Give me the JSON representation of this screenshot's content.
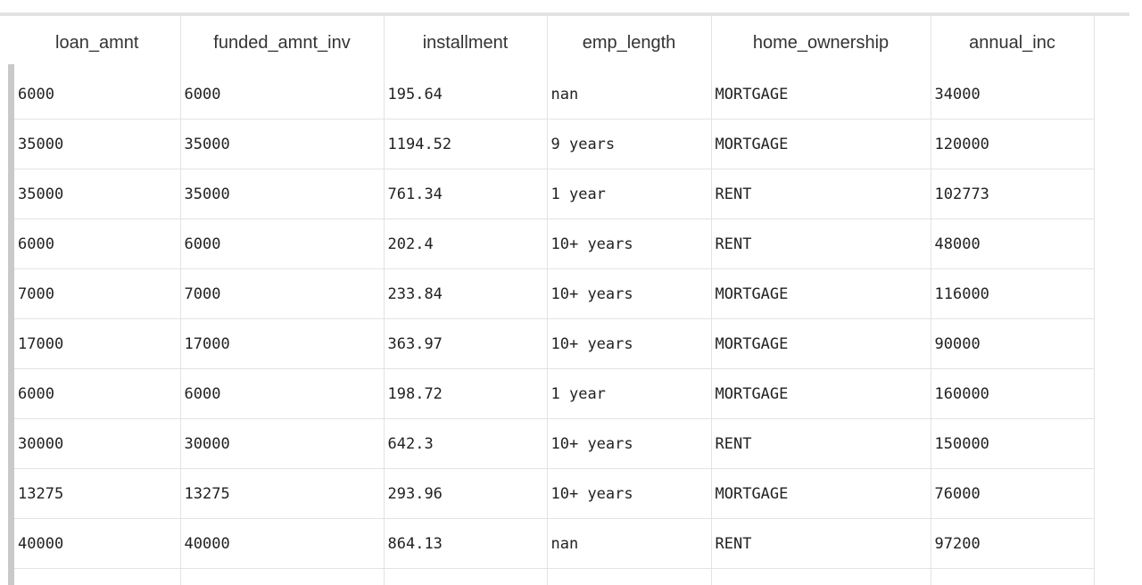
{
  "table": {
    "columns": [
      "loan_amnt",
      "funded_amnt_inv",
      "installment",
      "emp_length",
      "home_ownership",
      "annual_inc"
    ],
    "rows": [
      [
        "6000",
        "6000",
        "195.64",
        "nan",
        "MORTGAGE",
        "34000"
      ],
      [
        "35000",
        "35000",
        "1194.52",
        "9 years",
        "MORTGAGE",
        "120000"
      ],
      [
        "35000",
        "35000",
        "761.34",
        "1 year",
        "RENT",
        "102773"
      ],
      [
        "6000",
        "6000",
        "202.4",
        "10+ years",
        "RENT",
        "48000"
      ],
      [
        "7000",
        "7000",
        "233.84",
        "10+ years",
        "MORTGAGE",
        "116000"
      ],
      [
        "17000",
        "17000",
        "363.97",
        "10+ years",
        "MORTGAGE",
        "90000"
      ],
      [
        "6000",
        "6000",
        "198.72",
        "1 year",
        "MORTGAGE",
        "160000"
      ],
      [
        "30000",
        "30000",
        "642.3",
        "10+ years",
        "RENT",
        "150000"
      ],
      [
        "13275",
        "13275",
        "293.96",
        "10+ years",
        "MORTGAGE",
        "76000"
      ],
      [
        "40000",
        "40000",
        "864.13",
        "nan",
        "RENT",
        "97200"
      ]
    ]
  }
}
